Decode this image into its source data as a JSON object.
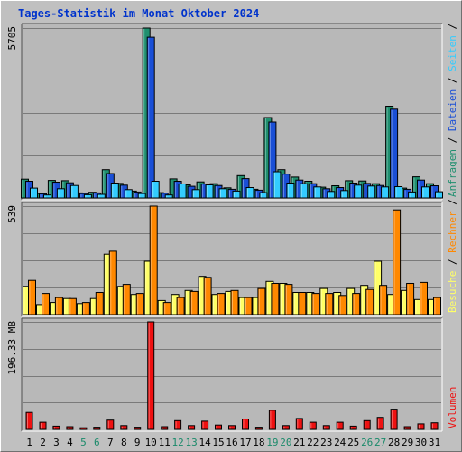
{
  "chart_data": [
    {
      "type": "bar",
      "title": "Tages-Statistik im Monat Oktober 2024",
      "categories": [
        "1",
        "2",
        "3",
        "4",
        "5",
        "6",
        "7",
        "8",
        "9",
        "10",
        "11",
        "12",
        "13",
        "14",
        "15",
        "16",
        "17",
        "18",
        "19",
        "20",
        "21",
        "22",
        "23",
        "24",
        "25",
        "26",
        "27",
        "28",
        "29",
        "30",
        "31"
      ],
      "weekend_days": [
        "5",
        "6",
        "12",
        "13",
        "19",
        "20",
        "26",
        "27"
      ],
      "ymax_label": "5705",
      "ymax": 5705,
      "series": [
        {
          "name": "Anfragen",
          "color": "#1f8f6f",
          "values": [
            630,
            150,
            590,
            580,
            170,
            190,
            950,
            490,
            230,
            5705,
            180,
            640,
            440,
            540,
            480,
            340,
            750,
            290,
            2700,
            950,
            700,
            560,
            360,
            410,
            580,
            570,
            480,
            3080,
            330,
            710,
            480
          ]
        },
        {
          "name": "Dateien",
          "color": "#1a4fd6",
          "values": [
            560,
            140,
            530,
            510,
            150,
            170,
            820,
            430,
            200,
            5400,
            160,
            560,
            390,
            470,
            420,
            290,
            650,
            260,
            2550,
            800,
            600,
            480,
            310,
            350,
            500,
            490,
            420,
            2980,
            290,
            600,
            410
          ]
        },
        {
          "name": "Seiten",
          "color": "#33ccff",
          "values": [
            330,
            100,
            310,
            420,
            110,
            120,
            500,
            280,
            150,
            560,
            100,
            470,
            280,
            440,
            310,
            230,
            350,
            180,
            880,
            500,
            480,
            370,
            220,
            250,
            430,
            400,
            370,
            380,
            200,
            370,
            210
          ]
        }
      ],
      "legend": [
        "Anfragen",
        "/",
        "Dateien",
        "/",
        "Seiten",
        "/"
      ]
    },
    {
      "type": "bar",
      "ymax_label": "539",
      "ymax": 539,
      "series": [
        {
          "name": "Besuche",
          "color": "#ffff66",
          "values": [
            140,
            50,
            60,
            80,
            55,
            80,
            300,
            140,
            100,
            265,
            70,
            100,
            120,
            190,
            100,
            115,
            85,
            85,
            165,
            155,
            110,
            110,
            130,
            110,
            130,
            145,
            265,
            100,
            120,
            75,
            75
          ]
        },
        {
          "name": "Rechner",
          "color": "#ff8800",
          "values": [
            170,
            105,
            85,
            80,
            60,
            110,
            315,
            150,
            105,
            539,
            60,
            85,
            115,
            185,
            105,
            120,
            85,
            130,
            155,
            150,
            110,
            105,
            105,
            95,
            105,
            125,
            145,
            520,
            155,
            160,
            85
          ]
        }
      ],
      "legend": [
        "Besuche",
        "/",
        "Rechner",
        "/"
      ]
    },
    {
      "type": "bar",
      "ymax_label": "196.33 MB",
      "ymax": 196.33,
      "series": [
        {
          "name": "Volumen",
          "color": "#ee1111",
          "values": [
            31,
            13,
            6,
            5,
            3,
            4,
            17,
            7,
            4,
            196.33,
            5,
            16,
            7,
            15,
            8,
            7,
            19,
            4,
            35,
            7,
            20,
            13,
            7,
            13,
            6,
            16,
            22,
            37,
            5,
            10,
            12
          ]
        }
      ],
      "legend": [
        "Volumen"
      ]
    }
  ]
}
